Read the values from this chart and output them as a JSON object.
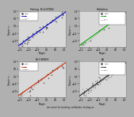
{
  "title_topleft": "Training  R=0.87682",
  "title_topright": "Validation",
  "title_bottomleft": "R=0.86869",
  "title_bottomright": "All",
  "xlabel": "Target",
  "bg_color": "#b0b0b0",
  "panel_bg": "#d8d8d8",
  "panel_edge": "#888888",
  "caption": "ion curve for training, validation, testing us",
  "train_color": "#0000cc",
  "val_color": "#00aa00",
  "test_color": "#cc2200",
  "all_color": "#222222",
  "fit_color": "#888888",
  "scatter_color": "#333333",
  "dashed_color": "#aaaaaa"
}
